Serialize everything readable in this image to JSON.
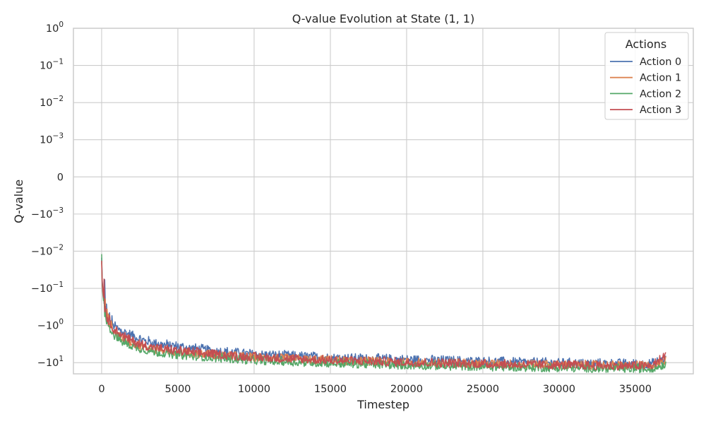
{
  "chart_data": {
    "type": "line",
    "title": "Q-value Evolution at State (1, 1)",
    "xlabel": "Timestep",
    "ylabel": "Q-value",
    "yscale": "symlog",
    "symlog_linthresh": 0.001,
    "xlim": [
      -1850,
      38800
    ],
    "ylim": [
      -20,
      1
    ],
    "grid": true,
    "x_ticks": [
      0,
      5000,
      10000,
      15000,
      20000,
      25000,
      30000,
      35000
    ],
    "y_ticks": [
      {
        "value": 1,
        "base": "10",
        "exp": "0",
        "sign": ""
      },
      {
        "value": 0.1,
        "base": "10",
        "exp": "−1",
        "sign": ""
      },
      {
        "value": 0.01,
        "base": "10",
        "exp": "−2",
        "sign": ""
      },
      {
        "value": 0.001,
        "base": "10",
        "exp": "−3",
        "sign": ""
      },
      {
        "value": 0,
        "base": "0",
        "exp": "",
        "sign": ""
      },
      {
        "value": -0.001,
        "base": "10",
        "exp": "−3",
        "sign": "−"
      },
      {
        "value": -0.01,
        "base": "10",
        "exp": "−2",
        "sign": "−"
      },
      {
        "value": -0.1,
        "base": "10",
        "exp": "−1",
        "sign": "−"
      },
      {
        "value": -1,
        "base": "10",
        "exp": "0",
        "sign": "−"
      },
      {
        "value": -10,
        "base": "10",
        "exp": "1",
        "sign": "−"
      }
    ],
    "legend": {
      "title": "Actions",
      "position": "top-right"
    },
    "series": [
      {
        "name": "Action 0",
        "color": "#4c72b0",
        "x": [
          0,
          200,
          500,
          800,
          1200,
          1600,
          2000,
          2500,
          3000,
          3500,
          4000,
          5000,
          6000,
          7000,
          8000,
          9000,
          10000,
          12000,
          14000,
          16000,
          18000,
          20000,
          22000,
          24000,
          26000,
          28000,
          30000,
          32000,
          34000,
          36000,
          37000
        ],
        "y": [
          -0.015,
          -0.25,
          -0.7,
          -1.0,
          -1.3,
          -1.6,
          -1.9,
          -2.4,
          -2.7,
          -3.0,
          -3.3,
          -3.7,
          -4.2,
          -4.7,
          -5.1,
          -5.6,
          -6.0,
          -6.6,
          -7.1,
          -7.6,
          -8.0,
          -8.4,
          -8.8,
          -9.2,
          -9.6,
          -10.0,
          -10.3,
          -10.6,
          -10.8,
          -11.0,
          -8.0
        ]
      },
      {
        "name": "Action 1",
        "color": "#dd8452",
        "x": [
          0,
          200,
          500,
          800,
          1200,
          1600,
          2000,
          2500,
          3000,
          3500,
          4000,
          5000,
          6000,
          7000,
          8000,
          9000,
          10000,
          12000,
          14000,
          16000,
          18000,
          20000,
          22000,
          24000,
          26000,
          28000,
          30000,
          32000,
          34000,
          36000,
          37000
        ],
        "y": [
          -0.02,
          -0.3,
          -0.9,
          -1.4,
          -2.0,
          -2.6,
          -3.0,
          -3.6,
          -4.0,
          -4.5,
          -4.8,
          -5.3,
          -5.8,
          -6.2,
          -6.6,
          -7.0,
          -7.4,
          -8.0,
          -8.6,
          -9.1,
          -9.6,
          -10.0,
          -10.4,
          -10.8,
          -11.1,
          -11.5,
          -11.8,
          -12.0,
          -12.2,
          -12.4,
          -9.0
        ]
      },
      {
        "name": "Action 2",
        "color": "#55a868",
        "x": [
          0,
          200,
          500,
          800,
          1200,
          1600,
          2000,
          2500,
          3000,
          3500,
          4000,
          5000,
          6000,
          7000,
          8000,
          9000,
          10000,
          12000,
          14000,
          16000,
          18000,
          20000,
          22000,
          24000,
          26000,
          28000,
          30000,
          32000,
          34000,
          36000,
          37000
        ],
        "y": [
          -0.012,
          -0.35,
          -1.1,
          -1.8,
          -2.5,
          -3.1,
          -3.6,
          -4.2,
          -4.7,
          -5.2,
          -5.6,
          -6.2,
          -6.8,
          -7.3,
          -7.8,
          -8.3,
          -8.8,
          -9.5,
          -10.2,
          -10.8,
          -11.4,
          -11.9,
          -12.4,
          -12.9,
          -13.3,
          -13.7,
          -14.0,
          -14.3,
          -14.6,
          -14.8,
          -11.0
        ]
      },
      {
        "name": "Action 3",
        "color": "#c44e52",
        "x": [
          0,
          200,
          500,
          800,
          1200,
          1600,
          2000,
          2500,
          3000,
          3500,
          4000,
          5000,
          6000,
          7000,
          8000,
          9000,
          10000,
          12000,
          14000,
          16000,
          18000,
          20000,
          22000,
          24000,
          26000,
          28000,
          30000,
          32000,
          34000,
          36000,
          37000
        ],
        "y": [
          -0.018,
          -0.28,
          -0.8,
          -1.2,
          -1.7,
          -2.2,
          -2.6,
          -3.2,
          -3.6,
          -4.0,
          -4.4,
          -4.9,
          -5.4,
          -5.9,
          -6.3,
          -6.8,
          -7.2,
          -7.9,
          -8.5,
          -9.0,
          -9.5,
          -10.0,
          -10.4,
          -10.8,
          -11.2,
          -11.6,
          -11.9,
          -12.2,
          -12.4,
          -12.6,
          -6.0
        ]
      }
    ]
  }
}
